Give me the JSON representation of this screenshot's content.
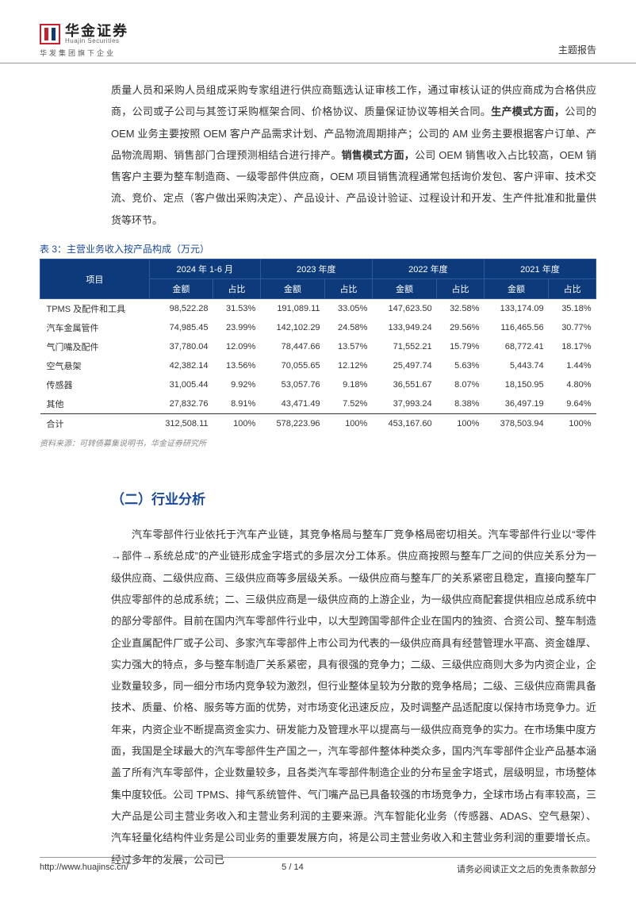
{
  "header": {
    "logo_cn": "华金证券",
    "logo_en": "Huajin Securities",
    "logo_sub": "华发集团旗下企业",
    "right": "主题报告"
  },
  "para1": {
    "t1": "质量人员和采购人员组成采购专家组进行供应商甄选认证审核工作，通过审核认证的供应商成为合格供应商，公司或子公司与其签订采购框架合同、价格协议、质量保证协议等相关合同。",
    "b1": "生产模式方面，",
    "t2": "公司的 OEM 业务主要按照 OEM 客户产品需求计划、产品物流周期排产；公司的 AM 业务主要根据客户订单、产品物流周期、销售部门合理预测相结合进行排产。",
    "b2": "销售模式方面，",
    "t3": "公司 OEM 销售收入占比较高，OEM 销售客户主要为整车制造商、一级零部件供应商，OEM 项目销售流程通常包括询价发包、客户评审、技术交流、竞价、定点（客户做出采购决定）、产品设计、产品设计验证、过程设计和开发、生产件批准和批量供货等环节。"
  },
  "table": {
    "caption": "表 3：主营业务收入按产品构成（万元）",
    "head_project": "项目",
    "periods": [
      "2024 年 1-6 月",
      "2023 年度",
      "2022 年度",
      "2021 年度"
    ],
    "subcols": [
      "金额",
      "占比"
    ],
    "rows": [
      {
        "label": "TPMS 及配件和工具",
        "v": [
          "98,522.28",
          "31.53%",
          "191,089.11",
          "33.05%",
          "147,623.50",
          "32.58%",
          "133,174.09",
          "35.18%"
        ]
      },
      {
        "label": "汽车金属管件",
        "v": [
          "74,985.45",
          "23.99%",
          "142,102.29",
          "24.58%",
          "133,949.24",
          "29.56%",
          "116,465.56",
          "30.77%"
        ]
      },
      {
        "label": "气门嘴及配件",
        "v": [
          "37,780.04",
          "12.09%",
          "78,447.66",
          "13.57%",
          "71,552.21",
          "15.79%",
          "68,772.41",
          "18.17%"
        ]
      },
      {
        "label": "空气悬架",
        "v": [
          "42,382.14",
          "13.56%",
          "70,055.65",
          "12.12%",
          "25,497.74",
          "5.63%",
          "5,443.74",
          "1.44%"
        ]
      },
      {
        "label": "传感器",
        "v": [
          "31,005.44",
          "9.92%",
          "53,057.76",
          "9.18%",
          "36,551.67",
          "8.07%",
          "18,150.95",
          "4.80%"
        ]
      },
      {
        "label": "其他",
        "v": [
          "27,832.76",
          "8.91%",
          "43,471.49",
          "7.52%",
          "37,993.24",
          "8.38%",
          "36,497.19",
          "9.64%"
        ]
      }
    ],
    "total": {
      "label": "合计",
      "v": [
        "312,508.11",
        "100%",
        "578,223.96",
        "100%",
        "453,167.60",
        "100%",
        "378,503.94",
        "100%"
      ]
    },
    "source": "资料来源：可转债募集说明书，华金证券研究所"
  },
  "section2": {
    "title": "（二）行业分析",
    "p1": "汽车零部件行业依托于汽车产业链，其竞争格局与整车厂竞争格局密切相关。汽车零部件行业以“零件→部件→系统总成”的产业链形成金字塔式的多层次分工体系。供应商按照与整车厂之间的供应关系分为一级供应商、二级供应商、三级供应商等多层级关系。一级供应商与整车厂的关系紧密且稳定，直接向整车厂供应零部件的总成系统；二、三级供应商是一级供应商的上游企业，为一级供应商配套提供相应总成系统中的部分零部件。目前在国内汽车零部件行业中，以大型跨国零部件企业在国内的独资、合资公司、整车制造企业直属配件厂或子公司、多家汽车零部件上市公司为代表的一级供应商具有经营管理水平高、资金雄厚、实力强大的特点，多与整车制造厂关系紧密，具有很强的竞争力；二级、三级供应商则大多为内资企业，企业数量较多，同一细分市场内竞争较为激烈，但行业整体呈较为分散的竞争格局；二级、三级供应商需具备技术、质量、价格、服务等方面的优势，对市场变化迅速反应，及时调整产品适配度以保持市场竞争力。近年来，内资企业不断提高资金实力、研发能力及管理水平以提高与一级供应商竞争的实力。在市场集中度方面，我国是全球最大的汽车零部件生产国之一，汽车零部件整体种类众多，国内汽车零部件企业产品基本涵盖了所有汽车零部件，企业数量较多，且各类汽车零部件制造企业的分布呈金字塔式，层级明显，市场整体集中度较低。公司 TPMS、排气系统管件、气门嘴产品已具备较强的市场竞争力，全球市场占有率较高，三大产品是公司主营业务收入和主营业务利润的主要来源。汽车智能化业务（传感器、ADAS、空气悬架）、汽车轻量化结构件业务是公司业务的重要发展方向，将是公司主营业务收入和主营业务利润的重要增长点。经过多年的发展，公司已"
  },
  "footer": {
    "left": "http://www.huajinsc.cn/",
    "mid": "5 / 14",
    "right": "请务必阅读正文之后的免责条款部分"
  },
  "colors": {
    "brand_red": "#c8202f",
    "brand_blue": "#0d3a7a",
    "link_blue": "#1a4a9c"
  }
}
